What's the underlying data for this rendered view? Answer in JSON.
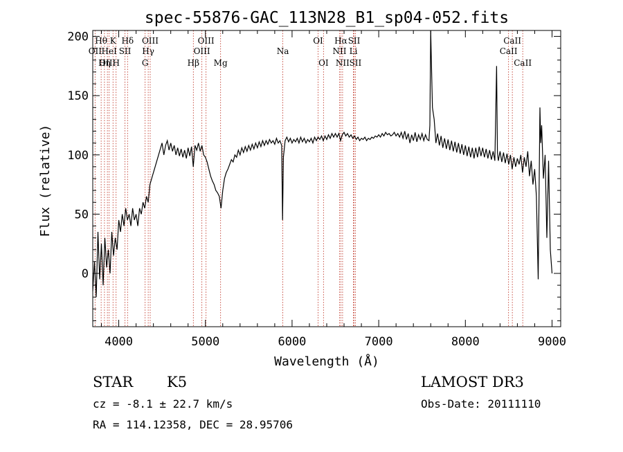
{
  "chart_data": {
    "type": "line",
    "title": "spec-55876-GAC_113N28_B1_sp04-052.fits",
    "xlabel": "Wavelength (Å)",
    "ylabel": "Flux (relative)",
    "xlim": [
      3700,
      9100
    ],
    "ylim": [
      -45,
      205
    ],
    "xticks": [
      4000,
      5000,
      6000,
      7000,
      8000,
      9000
    ],
    "yticks": [
      0,
      50,
      100,
      150,
      200
    ],
    "grid": false,
    "series": [
      {
        "name": "flux",
        "points": [
          [
            3700,
            -15
          ],
          [
            3720,
            10
          ],
          [
            3740,
            -20
          ],
          [
            3760,
            35
          ],
          [
            3780,
            -5
          ],
          [
            3800,
            25
          ],
          [
            3820,
            -10
          ],
          [
            3840,
            30
          ],
          [
            3860,
            5
          ],
          [
            3880,
            20
          ],
          [
            3900,
            0
          ],
          [
            3920,
            35
          ],
          [
            3940,
            15
          ],
          [
            3960,
            30
          ],
          [
            3980,
            20
          ],
          [
            4000,
            45
          ],
          [
            4020,
            35
          ],
          [
            4040,
            50
          ],
          [
            4060,
            40
          ],
          [
            4080,
            55
          ],
          [
            4100,
            45
          ],
          [
            4120,
            50
          ],
          [
            4140,
            40
          ],
          [
            4160,
            55
          ],
          [
            4180,
            45
          ],
          [
            4200,
            50
          ],
          [
            4220,
            40
          ],
          [
            4240,
            55
          ],
          [
            4260,
            50
          ],
          [
            4280,
            60
          ],
          [
            4300,
            55
          ],
          [
            4320,
            65
          ],
          [
            4340,
            60
          ],
          [
            4360,
            75
          ],
          [
            4380,
            80
          ],
          [
            4400,
            85
          ],
          [
            4420,
            90
          ],
          [
            4440,
            95
          ],
          [
            4460,
            100
          ],
          [
            4480,
            105
          ],
          [
            4500,
            110
          ],
          [
            4520,
            100
          ],
          [
            4540,
            108
          ],
          [
            4560,
            112
          ],
          [
            4580,
            104
          ],
          [
            4600,
            110
          ],
          [
            4620,
            103
          ],
          [
            4640,
            108
          ],
          [
            4660,
            100
          ],
          [
            4680,
            106
          ],
          [
            4700,
            99
          ],
          [
            4720,
            105
          ],
          [
            4740,
            98
          ],
          [
            4760,
            104
          ],
          [
            4780,
            97
          ],
          [
            4800,
            106
          ],
          [
            4820,
            99
          ],
          [
            4840,
            107
          ],
          [
            4860,
            90
          ],
          [
            4880,
            108
          ],
          [
            4900,
            104
          ],
          [
            4920,
            110
          ],
          [
            4940,
            103
          ],
          [
            4960,
            108
          ],
          [
            4980,
            100
          ],
          [
            5000,
            98
          ],
          [
            5020,
            94
          ],
          [
            5040,
            88
          ],
          [
            5060,
            82
          ],
          [
            5080,
            78
          ],
          [
            5100,
            75
          ],
          [
            5120,
            70
          ],
          [
            5140,
            68
          ],
          [
            5160,
            65
          ],
          [
            5180,
            55
          ],
          [
            5200,
            70
          ],
          [
            5220,
            80
          ],
          [
            5240,
            85
          ],
          [
            5260,
            88
          ],
          [
            5280,
            92
          ],
          [
            5300,
            96
          ],
          [
            5320,
            94
          ],
          [
            5340,
            100
          ],
          [
            5360,
            98
          ],
          [
            5380,
            104
          ],
          [
            5400,
            100
          ],
          [
            5420,
            106
          ],
          [
            5440,
            102
          ],
          [
            5460,
            107
          ],
          [
            5480,
            103
          ],
          [
            5500,
            108
          ],
          [
            5520,
            104
          ],
          [
            5540,
            109
          ],
          [
            5560,
            105
          ],
          [
            5580,
            110
          ],
          [
            5600,
            106
          ],
          [
            5620,
            111
          ],
          [
            5640,
            107
          ],
          [
            5660,
            112
          ],
          [
            5680,
            108
          ],
          [
            5700,
            112
          ],
          [
            5720,
            109
          ],
          [
            5740,
            113
          ],
          [
            5760,
            110
          ],
          [
            5780,
            112
          ],
          [
            5800,
            109
          ],
          [
            5820,
            114
          ],
          [
            5840,
            110
          ],
          [
            5860,
            112
          ],
          [
            5880,
            108
          ],
          [
            5890,
            45
          ],
          [
            5900,
            98
          ],
          [
            5920,
            112
          ],
          [
            5940,
            115
          ],
          [
            5960,
            111
          ],
          [
            5980,
            114
          ],
          [
            6000,
            110
          ],
          [
            6020,
            113
          ],
          [
            6040,
            111
          ],
          [
            6060,
            114
          ],
          [
            6080,
            110
          ],
          [
            6100,
            115
          ],
          [
            6120,
            111
          ],
          [
            6140,
            114
          ],
          [
            6160,
            110
          ],
          [
            6180,
            113
          ],
          [
            6200,
            111
          ],
          [
            6220,
            114
          ],
          [
            6240,
            110
          ],
          [
            6260,
            115
          ],
          [
            6280,
            112
          ],
          [
            6300,
            115
          ],
          [
            6320,
            113
          ],
          [
            6340,
            116
          ],
          [
            6360,
            112
          ],
          [
            6380,
            116
          ],
          [
            6400,
            113
          ],
          [
            6420,
            117
          ],
          [
            6440,
            114
          ],
          [
            6460,
            118
          ],
          [
            6480,
            115
          ],
          [
            6500,
            118
          ],
          [
            6520,
            115
          ],
          [
            6540,
            118
          ],
          [
            6560,
            112
          ],
          [
            6580,
            117
          ],
          [
            6600,
            119
          ],
          [
            6620,
            116
          ],
          [
            6640,
            118
          ],
          [
            6660,
            115
          ],
          [
            6680,
            117
          ],
          [
            6700,
            114
          ],
          [
            6720,
            116
          ],
          [
            6740,
            113
          ],
          [
            6760,
            115
          ],
          [
            6780,
            112
          ],
          [
            6800,
            114
          ],
          [
            6820,
            113
          ],
          [
            6840,
            115
          ],
          [
            6860,
            112
          ],
          [
            6880,
            114
          ],
          [
            6900,
            113
          ],
          [
            6920,
            115
          ],
          [
            6940,
            114
          ],
          [
            6960,
            116
          ],
          [
            6980,
            115
          ],
          [
            7000,
            117
          ],
          [
            7020,
            115
          ],
          [
            7040,
            118
          ],
          [
            7060,
            116
          ],
          [
            7080,
            119
          ],
          [
            7100,
            117
          ],
          [
            7120,
            118
          ],
          [
            7140,
            116
          ],
          [
            7160,
            117
          ],
          [
            7180,
            119
          ],
          [
            7200,
            116
          ],
          [
            7220,
            118
          ],
          [
            7240,
            115
          ],
          [
            7260,
            119
          ],
          [
            7280,
            114
          ],
          [
            7300,
            120
          ],
          [
            7320,
            113
          ],
          [
            7340,
            118
          ],
          [
            7360,
            110
          ],
          [
            7380,
            117
          ],
          [
            7400,
            112
          ],
          [
            7420,
            119
          ],
          [
            7440,
            111
          ],
          [
            7460,
            117
          ],
          [
            7480,
            113
          ],
          [
            7500,
            118
          ],
          [
            7520,
            112
          ],
          [
            7540,
            117
          ],
          [
            7560,
            113
          ],
          [
            7580,
            112
          ],
          [
            7590,
            125
          ],
          [
            7600,
            205
          ],
          [
            7620,
            140
          ],
          [
            7640,
            130
          ],
          [
            7660,
            110
          ],
          [
            7680,
            118
          ],
          [
            7700,
            108
          ],
          [
            7720,
            116
          ],
          [
            7740,
            106
          ],
          [
            7760,
            114
          ],
          [
            7780,
            105
          ],
          [
            7800,
            113
          ],
          [
            7820,
            104
          ],
          [
            7840,
            112
          ],
          [
            7860,
            103
          ],
          [
            7880,
            111
          ],
          [
            7900,
            102
          ],
          [
            7920,
            110
          ],
          [
            7940,
            101
          ],
          [
            7960,
            109
          ],
          [
            7980,
            100
          ],
          [
            8000,
            108
          ],
          [
            8020,
            99
          ],
          [
            8040,
            107
          ],
          [
            8060,
            98
          ],
          [
            8080,
            106
          ],
          [
            8100,
            97
          ],
          [
            8120,
            106
          ],
          [
            8140,
            98
          ],
          [
            8160,
            107
          ],
          [
            8180,
            99
          ],
          [
            8200,
            106
          ],
          [
            8220,
            98
          ],
          [
            8240,
            105
          ],
          [
            8260,
            97
          ],
          [
            8280,
            104
          ],
          [
            8300,
            96
          ],
          [
            8320,
            103
          ],
          [
            8340,
            95
          ],
          [
            8360,
            175
          ],
          [
            8370,
            102
          ],
          [
            8380,
            95
          ],
          [
            8400,
            103
          ],
          [
            8420,
            94
          ],
          [
            8440,
            102
          ],
          [
            8460,
            93
          ],
          [
            8480,
            101
          ],
          [
            8500,
            92
          ],
          [
            8520,
            100
          ],
          [
            8540,
            88
          ],
          [
            8560,
            98
          ],
          [
            8580,
            90
          ],
          [
            8600,
            97
          ],
          [
            8620,
            92
          ],
          [
            8640,
            100
          ],
          [
            8660,
            85
          ],
          [
            8680,
            98
          ],
          [
            8700,
            90
          ],
          [
            8720,
            103
          ],
          [
            8740,
            82
          ],
          [
            8760,
            95
          ],
          [
            8780,
            75
          ],
          [
            8800,
            88
          ],
          [
            8820,
            65
          ],
          [
            8840,
            -5
          ],
          [
            8860,
            140
          ],
          [
            8870,
            110
          ],
          [
            8880,
            125
          ],
          [
            8900,
            80
          ],
          [
            8920,
            100
          ],
          [
            8940,
            30
          ],
          [
            8960,
            95
          ],
          [
            8980,
            20
          ],
          [
            9000,
            0
          ]
        ]
      }
    ],
    "spectral_lines": [
      {
        "label": "Hθ",
        "wavelength": 3797,
        "row": 1
      },
      {
        "label": "OII",
        "wavelength": 3727,
        "row": 2
      },
      {
        "label": "OIII",
        "wavelength": 3869,
        "row": 3
      },
      {
        "label": "K",
        "wavelength": 3934,
        "row": 1
      },
      {
        "label": "HeI",
        "wavelength": 3889,
        "row": 2
      },
      {
        "label": "Hη",
        "wavelength": 3835,
        "row": 3
      },
      {
        "label": "H",
        "wavelength": 3969,
        "row": 3
      },
      {
        "label": "Hδ",
        "wavelength": 4102,
        "row": 1
      },
      {
        "label": "SII",
        "wavelength": 4072,
        "row": 2
      },
      {
        "label": "OIII",
        "wavelength": 4363,
        "row": 1
      },
      {
        "label": "Hγ",
        "wavelength": 4340,
        "row": 2
      },
      {
        "label": "G",
        "wavelength": 4304,
        "row": 3
      },
      {
        "label": "Hβ",
        "wavelength": 4861,
        "row": 3
      },
      {
        "label": "OIII",
        "wavelength": 5007,
        "row": 1
      },
      {
        "label": "OIII",
        "wavelength": 4959,
        "row": 2
      },
      {
        "label": "Mg",
        "wavelength": 5175,
        "row": 3
      },
      {
        "label": "Na",
        "wavelength": 5893,
        "row": 2
      },
      {
        "label": "OI",
        "wavelength": 6300,
        "row": 1
      },
      {
        "label": "OI",
        "wavelength": 6363,
        "row": 3
      },
      {
        "label": "Hα",
        "wavelength": 6563,
        "row": 1
      },
      {
        "label": "NII",
        "wavelength": 6548,
        "row": 2
      },
      {
        "label": "NII",
        "wavelength": 6583,
        "row": 3
      },
      {
        "label": "SII",
        "wavelength": 6716,
        "row": 1
      },
      {
        "label": "Li",
        "wavelength": 6708,
        "row": 2
      },
      {
        "label": "SII",
        "wavelength": 6731,
        "row": 3
      },
      {
        "label": "CaII",
        "wavelength": 8542,
        "row": 1
      },
      {
        "label": "CaII",
        "wavelength": 8498,
        "row": 2
      },
      {
        "label": "CaII",
        "wavelength": 8662,
        "row": 3
      }
    ]
  },
  "info": {
    "object_class": "STAR",
    "subclass": "K5",
    "survey": "LAMOST DR3",
    "cz": "cz = -8.1 ± 22.7 km/s",
    "obs_date": "Obs-Date: 20111110",
    "coords": "RA = 114.12358, DEC =  28.95706"
  }
}
